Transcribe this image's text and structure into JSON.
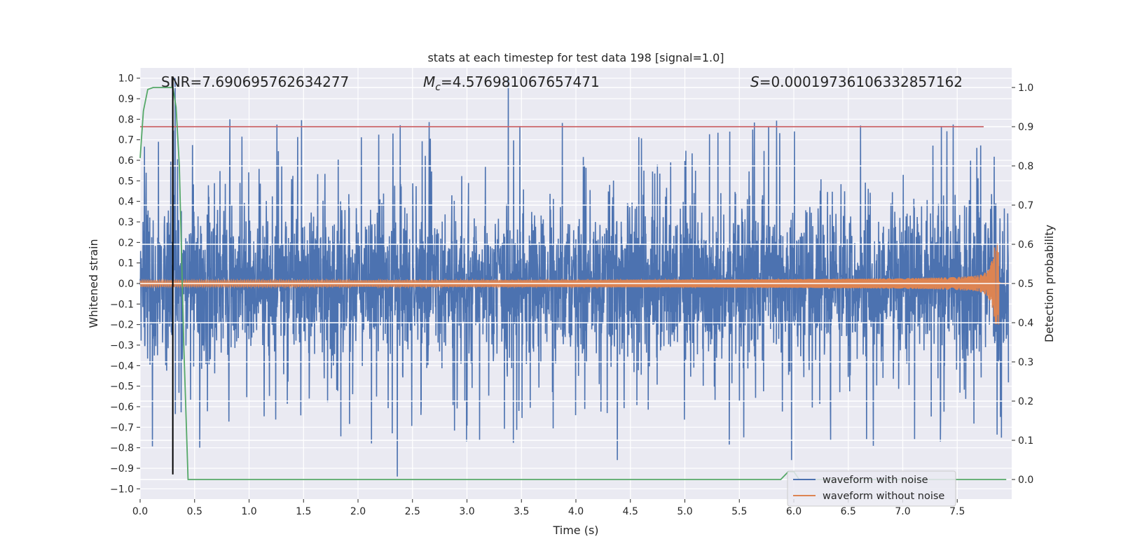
{
  "chart_data": {
    "type": "line",
    "title": "stats at each timestep for test data 198 [signal=1.0]",
    "xlabel": "Time (s)",
    "ylabel": "Whitened strain",
    "y2label": "Detection probability",
    "xlim": [
      0,
      8
    ],
    "ylim": [
      -1.05,
      1.05
    ],
    "y2lim": [
      -0.05,
      1.05
    ],
    "x_ticks": [
      0.0,
      0.5,
      1.0,
      1.5,
      2.0,
      2.5,
      3.0,
      3.5,
      4.0,
      4.5,
      5.0,
      5.5,
      6.0,
      6.5,
      7.0,
      7.5
    ],
    "x_tick_labels": [
      "0.0",
      "0.5",
      "1.0",
      "1.5",
      "2.0",
      "2.5",
      "3.0",
      "3.5",
      "4.0",
      "4.5",
      "5.0",
      "5.5",
      "6.0",
      "6.5",
      "7.0",
      "7.5"
    ],
    "y_ticks": [
      -1.0,
      -0.9,
      -0.8,
      -0.7,
      -0.6,
      -0.5,
      -0.4,
      -0.3,
      -0.2,
      -0.1,
      0.0,
      0.1,
      0.2,
      0.3,
      0.4,
      0.5,
      0.6,
      0.7,
      0.8,
      0.9,
      1.0
    ],
    "y_tick_labels": [
      "−1.0",
      "−0.9",
      "−0.8",
      "−0.7",
      "−0.6",
      "−0.5",
      "−0.4",
      "−0.3",
      "−0.2",
      "−0.1",
      "0.0",
      "0.1",
      "0.2",
      "0.3",
      "0.4",
      "0.5",
      "0.6",
      "0.7",
      "0.8",
      "0.9",
      "1.0"
    ],
    "y2_ticks": [
      0.0,
      0.1,
      0.2,
      0.3,
      0.4,
      0.5,
      0.6,
      0.7,
      0.8,
      0.9,
      1.0
    ],
    "y2_tick_labels": [
      "0.0",
      "0.1",
      "0.2",
      "0.3",
      "0.4",
      "0.5",
      "0.6",
      "0.7",
      "0.8",
      "0.9",
      "1.0"
    ],
    "annotations": {
      "snr": "SNR=7.690695762634277",
      "mc_symbol": "M",
      "mc_sub": "c",
      "mc_value": "=4.576981067657471",
      "s_symbol": "S",
      "s_value": "=0.0001973610633285716​2"
    },
    "series": [
      {
        "name": "waveform with noise",
        "color": "#4c72b0",
        "description": "whitened noisy strain, roughly symmetric dense oscillation around 0 with typical envelope ±0.45 and peaks up to ±1.0",
        "typical_envelope": 0.45,
        "peaks": [
          {
            "x": 0.32,
            "y": 1.0
          },
          {
            "x": 3.38,
            "y": 1.0
          },
          {
            "x": 2.36,
            "y": -0.94
          },
          {
            "x": 5.98,
            "y": -0.86
          },
          {
            "x": 4.38,
            "y": -0.86
          }
        ]
      },
      {
        "name": "waveform without noise",
        "color": "#dd8452",
        "description": "chirp signal, amplitude grows toward merger near t=7.9",
        "amplitude_start": 0.015,
        "peak": {
          "x": 7.86,
          "y": 0.16
        },
        "trough": {
          "x": 7.88,
          "y": -0.2
        },
        "merger_time": 7.88
      },
      {
        "name": "detection probability",
        "color": "#55a868",
        "axis": "right",
        "points": [
          [
            0.0,
            0.82
          ],
          [
            0.03,
            0.94
          ],
          [
            0.07,
            0.995
          ],
          [
            0.12,
            1.0
          ],
          [
            0.3,
            1.0
          ],
          [
            0.33,
            0.95
          ],
          [
            0.36,
            0.8
          ],
          [
            0.4,
            0.35
          ],
          [
            0.44,
            0.0
          ],
          [
            5.88,
            0.0
          ],
          [
            5.95,
            0.02
          ],
          [
            6.0,
            0.02
          ],
          [
            6.05,
            0.0
          ],
          [
            7.95,
            0.0
          ]
        ]
      },
      {
        "name": "threshold",
        "color": "#c44e52",
        "axis": "right",
        "value": 0.9
      },
      {
        "name": "marker",
        "color": "#000000",
        "type": "vline",
        "x": 0.3,
        "y_range": [
          -0.93,
          1.0
        ]
      }
    ],
    "legend": {
      "placement": "lower-right",
      "entries": [
        "waveform with noise",
        "waveform without noise"
      ]
    },
    "grid": true
  }
}
